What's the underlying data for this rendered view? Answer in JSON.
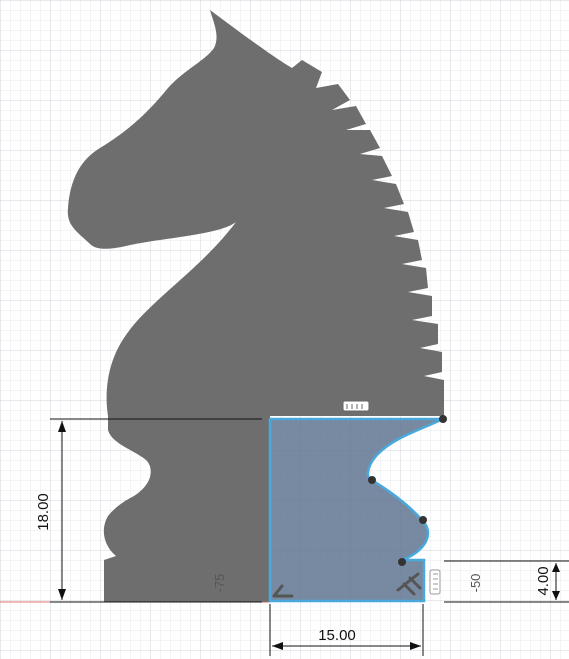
{
  "colors": {
    "background": "#ffffff",
    "grid_minor": "#e6e8ec",
    "grid_major": "#cfd3da",
    "silhouette": "#6e6e6e",
    "sketch_profile": "#4aa9dc",
    "profile_fill": "#5f7590",
    "dimension_line": "#111111",
    "axis_line": "#e07070",
    "constraint_glyph": "#555555"
  },
  "dimensions": {
    "height": "18.00",
    "width": "15.00",
    "base_height": "4.00",
    "angle_left": "-75",
    "angle_right": "-50"
  },
  "icons": {
    "horizontal_constraint": "horizontal-constraint-icon",
    "vertical_constraint": "vertical-constraint-icon",
    "perpendicular_constraint": "perpendicular-constraint-icon",
    "tangent_constraint": "tangent-constraint-icon"
  }
}
